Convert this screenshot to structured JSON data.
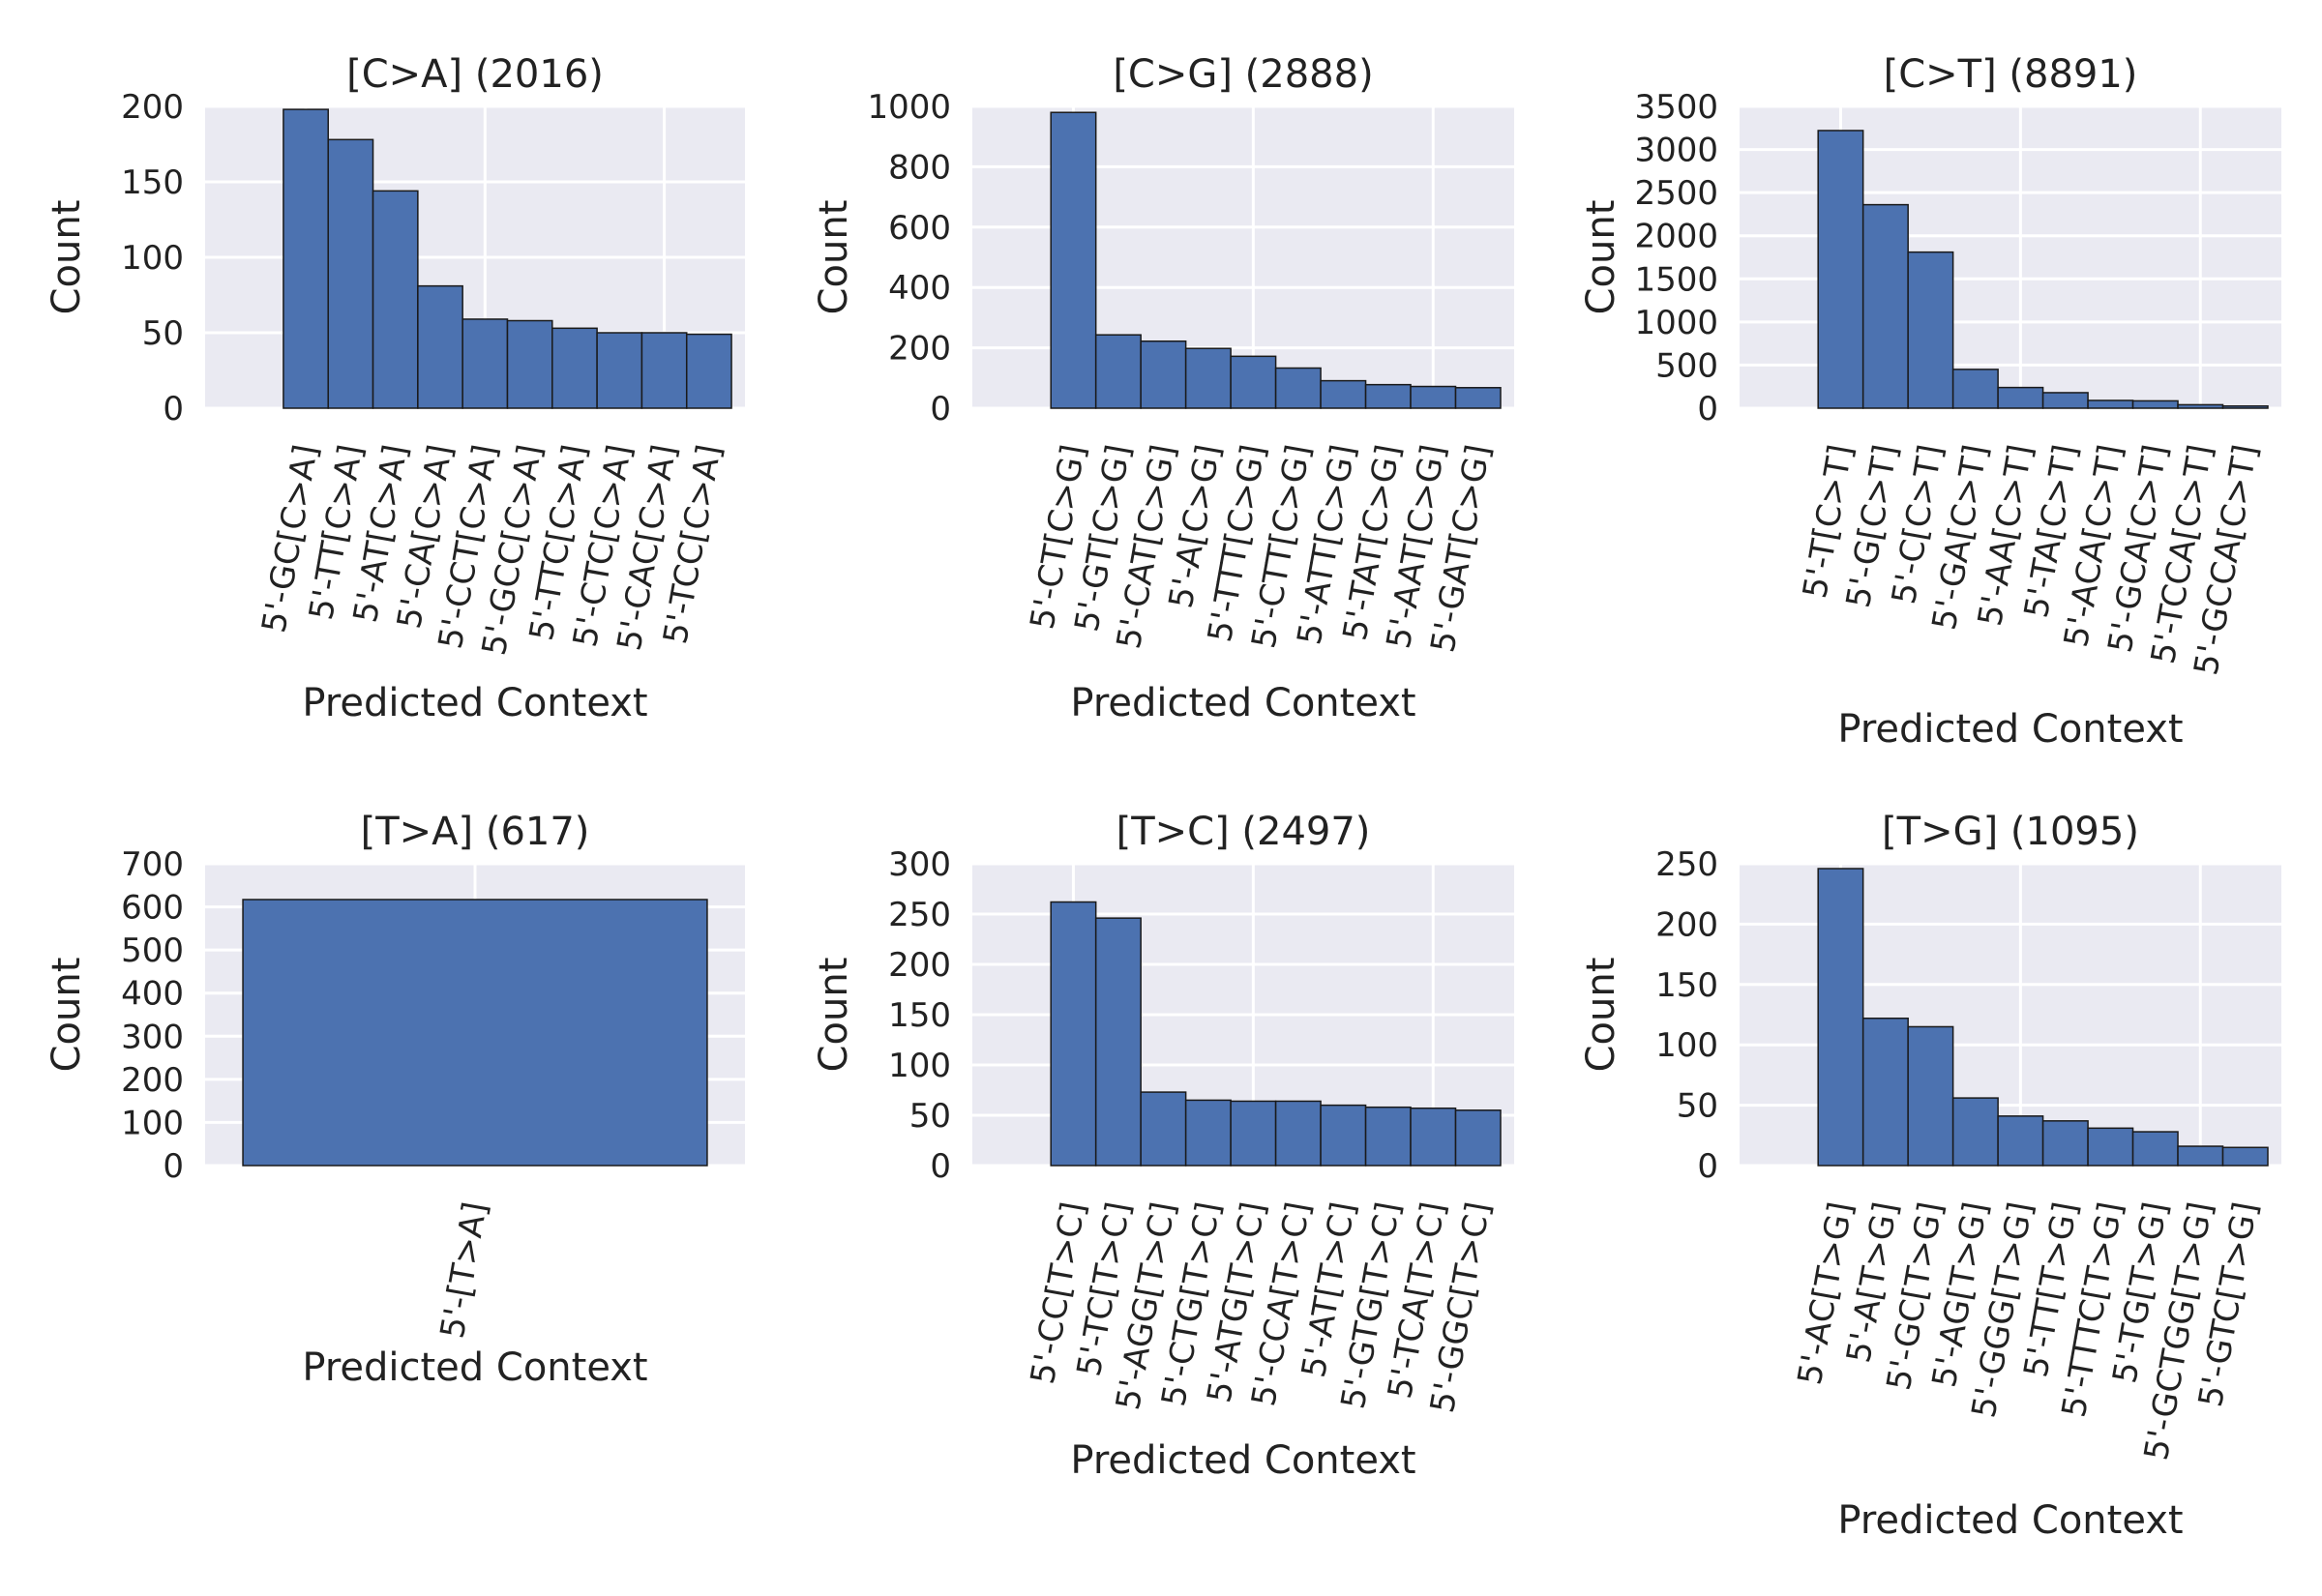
{
  "style": {
    "bar_color": "#4c72b0",
    "plot_bg": "#eaeaf2",
    "grid_color": "#ffffff",
    "text_color": "#222222"
  },
  "chart_data": [
    {
      "type": "bar",
      "title": "[C>A] (2016)",
      "xlabel": "Predicted Context",
      "ylabel": "Count",
      "ylim": [
        0,
        200
      ],
      "yticks": [
        0,
        50,
        100,
        150,
        200
      ],
      "grid": true,
      "categories": [
        "5'-GC[C>A]",
        "5'-TT[C>A]",
        "5'-AT[C>A]",
        "5'-CA[C>A]",
        "5'-CCT[C>A]",
        "5'-GCC[C>A]",
        "5'-TTC[C>A]",
        "5'-CTC[C>A]",
        "5'-CAC[C>A]",
        "5'-TCC[C>A]"
      ],
      "values": [
        198,
        178,
        144,
        81,
        59,
        58,
        53,
        50,
        50,
        49
      ]
    },
    {
      "type": "bar",
      "title": "[C>G] (2888)",
      "xlabel": "Predicted Context",
      "ylabel": "Count",
      "ylim": [
        0,
        1000
      ],
      "yticks": [
        0,
        200,
        400,
        600,
        800,
        1000
      ],
      "grid": true,
      "categories": [
        "5'-CT[C>G]",
        "5'-GT[C>G]",
        "5'-CAT[C>G]",
        "5'-A[C>G]",
        "5'-TTT[C>G]",
        "5'-CTT[C>G]",
        "5'-ATT[C>G]",
        "5'-TAT[C>G]",
        "5'-AAT[C>G]",
        "5'-GAT[C>G]"
      ],
      "values": [
        980,
        243,
        222,
        198,
        172,
        133,
        91,
        78,
        72,
        68
      ]
    },
    {
      "type": "bar",
      "title": "[C>T] (8891)",
      "xlabel": "Predicted Context",
      "ylabel": "Count",
      "ylim": [
        0,
        3500
      ],
      "yticks": [
        0,
        500,
        1000,
        1500,
        2000,
        2500,
        3000,
        3500
      ],
      "grid": true,
      "categories": [
        "5'-T[C>T]",
        "5'-G[C>T]",
        "5'-C[C>T]",
        "5'-GA[C>T]",
        "5'-AA[C>T]",
        "5'-TA[C>T]",
        "5'-ACA[C>T]",
        "5'-GCA[C>T]",
        "5'-TCCA[C>T]",
        "5'-GCCA[C>T]"
      ],
      "values": [
        3220,
        2360,
        1810,
        450,
        240,
        180,
        90,
        85,
        40,
        25
      ]
    },
    {
      "type": "bar",
      "title": "[T>A] (617)",
      "xlabel": "Predicted Context",
      "ylabel": "Count",
      "ylim": [
        0,
        700
      ],
      "yticks": [
        0,
        100,
        200,
        300,
        400,
        500,
        600,
        700
      ],
      "grid": true,
      "categories": [
        "5'-[T>A]"
      ],
      "values": [
        617
      ]
    },
    {
      "type": "bar",
      "title": "[T>C] (2497)",
      "xlabel": "Predicted Context",
      "ylabel": "Count",
      "ylim": [
        0,
        300
      ],
      "yticks": [
        0,
        50,
        100,
        150,
        200,
        250,
        300
      ],
      "grid": true,
      "categories": [
        "5'-CC[T>C]",
        "5'-TC[T>C]",
        "5'-AGG[T>C]",
        "5'-CTG[T>C]",
        "5'-ATG[T>C]",
        "5'-CCA[T>C]",
        "5'-AT[T>C]",
        "5'-GTG[T>C]",
        "5'-TCA[T>C]",
        "5'-GGC[T>C]"
      ],
      "values": [
        262,
        246,
        73,
        65,
        64,
        64,
        60,
        58,
        57,
        55
      ]
    },
    {
      "type": "bar",
      "title": "[T>G] (1095)",
      "xlabel": "Predicted Context",
      "ylabel": "Count",
      "ylim": [
        0,
        250
      ],
      "yticks": [
        0,
        50,
        100,
        150,
        200,
        250
      ],
      "grid": true,
      "categories": [
        "5'-AC[T>G]",
        "5'-A[T>G]",
        "5'-GC[T>G]",
        "5'-AG[T>G]",
        "5'-GGG[T>G]",
        "5'-TT[T>G]",
        "5'-TTTC[T>G]",
        "5'-TG[T>G]",
        "5'-GCTGG[T>G]",
        "5'-GTC[T>G]"
      ],
      "values": [
        246,
        122,
        115,
        56,
        41,
        37,
        31,
        28,
        16,
        15
      ]
    }
  ]
}
